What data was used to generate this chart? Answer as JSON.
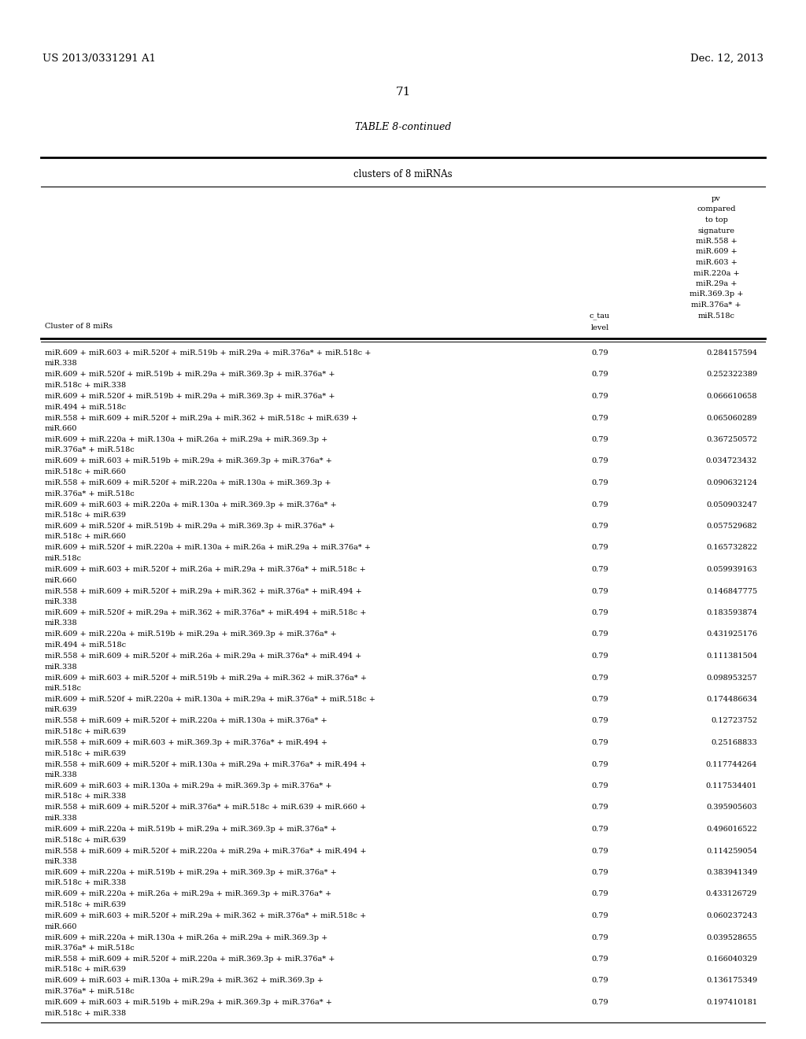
{
  "patent_left": "US 2013/0331291 A1",
  "patent_right": "Dec. 12, 2013",
  "page_number": "71",
  "table_title": "TABLE 8-continued",
  "table_subtitle": "clusters of 8 miRNAs",
  "col1_header": "Cluster of 8 miRs",
  "col2_header_line1": "c_tau",
  "col2_header_line2": "level",
  "col3_header_lines": [
    "pv",
    "compared",
    "to top",
    "signature",
    "miR.558 +",
    "miR.609 +",
    "miR.603 +",
    "miR.220a +",
    "miR.29a +",
    "miR.369.3p +",
    "miR.376a* +",
    "miR.518c"
  ],
  "rows": [
    [
      "miR.609 + miR.603 + miR.520f + miR.519b + miR.29a + miR.376a* + miR.518c +",
      "miR.338",
      "0.79",
      "0.284157594"
    ],
    [
      "miR.609 + miR.520f + miR.519b + miR.29a + miR.369.3p + miR.376a* +",
      "miR.518c + miR.338",
      "0.79",
      "0.252322389"
    ],
    [
      "miR.609 + miR.520f + miR.519b + miR.29a + miR.369.3p + miR.376a* +",
      "miR.494 + miR.518c",
      "0.79",
      "0.066610658"
    ],
    [
      "miR.558 + miR.609 + miR.520f + miR.29a + miR.362 + miR.518c + miR.639 +",
      "miR.660",
      "0.79",
      "0.065060289"
    ],
    [
      "miR.609 + miR.220a + miR.130a + miR.26a + miR.29a + miR.369.3p +",
      "miR.376a* + miR.518c",
      "0.79",
      "0.367250572"
    ],
    [
      "miR.609 + miR.603 + miR.519b + miR.29a + miR.369.3p + miR.376a* +",
      "miR.518c + miR.660",
      "0.79",
      "0.034723432"
    ],
    [
      "miR.558 + miR.609 + miR.520f + miR.220a + miR.130a + miR.369.3p +",
      "miR.376a* + miR.518c",
      "0.79",
      "0.090632124"
    ],
    [
      "miR.609 + miR.603 + miR.220a + miR.130a + miR.369.3p + miR.376a* +",
      "miR.518c + miR.639",
      "0.79",
      "0.050903247"
    ],
    [
      "miR.609 + miR.520f + miR.519b + miR.29a + miR.369.3p + miR.376a* +",
      "miR.518c + miR.660",
      "0.79",
      "0.057529682"
    ],
    [
      "miR.609 + miR.520f + miR.220a + miR.130a + miR.26a + miR.29a + miR.376a* +",
      "miR.518c",
      "0.79",
      "0.165732822"
    ],
    [
      "miR.609 + miR.603 + miR.520f + miR.26a + miR.29a + miR.376a* + miR.518c +",
      "miR.660",
      "0.79",
      "0.059939163"
    ],
    [
      "miR.558 + miR.609 + miR.520f + miR.29a + miR.362 + miR.376a* + miR.494 +",
      "miR.338",
      "0.79",
      "0.146847775"
    ],
    [
      "miR.609 + miR.520f + miR.29a + miR.362 + miR.376a* + miR.494 + miR.518c +",
      "miR.338",
      "0.79",
      "0.183593874"
    ],
    [
      "miR.609 + miR.220a + miR.519b + miR.29a + miR.369.3p + miR.376a* +",
      "miR.494 + miR.518c",
      "0.79",
      "0.431925176"
    ],
    [
      "miR.558 + miR.609 + miR.520f + miR.26a + miR.29a + miR.376a* + miR.494 +",
      "miR.338",
      "0.79",
      "0.111381504"
    ],
    [
      "miR.609 + miR.603 + miR.520f + miR.519b + miR.29a + miR.362 + miR.376a* +",
      "miR.518c",
      "0.79",
      "0.098953257"
    ],
    [
      "miR.609 + miR.520f + miR.220a + miR.130a + miR.29a + miR.376a* + miR.518c +",
      "miR.639",
      "0.79",
      "0.174486634"
    ],
    [
      "miR.558 + miR.609 + miR.520f + miR.220a + miR.130a + miR.376a* +",
      "miR.518c + miR.639",
      "0.79",
      "0.12723752"
    ],
    [
      "miR.558 + miR.609 + miR.603 + miR.369.3p + miR.376a* + miR.494 +",
      "miR.518c + miR.639",
      "0.79",
      "0.25168833"
    ],
    [
      "miR.558 + miR.609 + miR.520f + miR.130a + miR.29a + miR.376a* + miR.494 +",
      "miR.338",
      "0.79",
      "0.117744264"
    ],
    [
      "miR.609 + miR.603 + miR.130a + miR.29a + miR.369.3p + miR.376a* +",
      "miR.518c + miR.338",
      "0.79",
      "0.117534401"
    ],
    [
      "miR.558 + miR.609 + miR.520f + miR.376a* + miR.518c + miR.639 + miR.660 +",
      "miR.338",
      "0.79",
      "0.395905603"
    ],
    [
      "miR.609 + miR.220a + miR.519b + miR.29a + miR.369.3p + miR.376a* +",
      "miR.518c + miR.639",
      "0.79",
      "0.496016522"
    ],
    [
      "miR.558 + miR.609 + miR.520f + miR.220a + miR.29a + miR.376a* + miR.494 +",
      "miR.338",
      "0.79",
      "0.114259054"
    ],
    [
      "miR.609 + miR.220a + miR.519b + miR.29a + miR.369.3p + miR.376a* +",
      "miR.518c + miR.338",
      "0.79",
      "0.383941349"
    ],
    [
      "miR.609 + miR.220a + miR.26a + miR.29a + miR.369.3p + miR.376a* +",
      "miR.518c + miR.639",
      "0.79",
      "0.433126729"
    ],
    [
      "miR.609 + miR.603 + miR.520f + miR.29a + miR.362 + miR.376a* + miR.518c +",
      "miR.660",
      "0.79",
      "0.060237243"
    ],
    [
      "miR.609 + miR.220a + miR.130a + miR.26a + miR.29a + miR.369.3p +",
      "miR.376a* + miR.518c",
      "0.79",
      "0.039528655"
    ],
    [
      "miR.558 + miR.609 + miR.520f + miR.220a + miR.369.3p + miR.376a* +",
      "miR.518c + miR.639",
      "0.79",
      "0.166040329"
    ],
    [
      "miR.609 + miR.603 + miR.130a + miR.29a + miR.362 + miR.369.3p +",
      "miR.376a* + miR.518c",
      "0.79",
      "0.136175349"
    ],
    [
      "miR.609 + miR.603 + miR.519b + miR.29a + miR.369.3p + miR.376a* +",
      "miR.518c + miR.338",
      "0.79",
      "0.197410181"
    ]
  ],
  "bg_color": "#ffffff",
  "text_color": "#000000",
  "font_size": 7.0,
  "header_font_size": 7.0,
  "title_font_size": 9.0,
  "patent_font_size": 9.5,
  "page_font_size": 11.0
}
